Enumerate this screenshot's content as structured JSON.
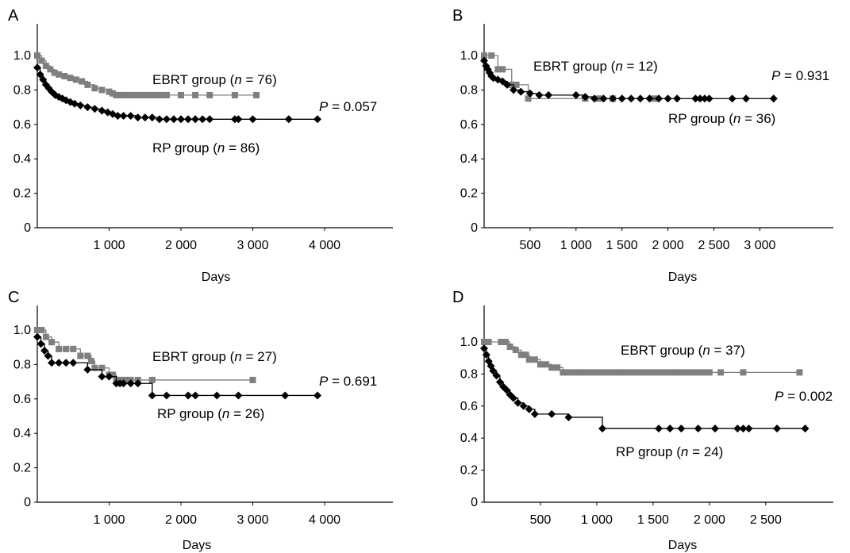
{
  "chart_data": [
    {
      "panel_label": "A",
      "type": "line",
      "xlabel": "Days",
      "ylabel": "",
      "ylim": [
        0,
        1.0
      ],
      "xlim": [
        0,
        4950
      ],
      "x_ticks": [
        1000,
        2000,
        3000,
        4000
      ],
      "x_tick_labels": [
        "1 000",
        "2 000",
        "3 000",
        "4 000"
      ],
      "y_ticks": [
        0,
        0.2,
        0.4,
        0.6,
        0.8,
        1.0
      ],
      "y_tick_labels": [
        "0",
        "0.2",
        "0.4",
        "0.6",
        "0.8",
        "1.0"
      ],
      "grid": false,
      "series": [
        {
          "name": "EBRT group",
          "n_label": "76",
          "color": "#7f7f7f",
          "marker": "square",
          "x": [
            0,
            60,
            120,
            180,
            240,
            300,
            380,
            460,
            540,
            620,
            700,
            800,
            900,
            1000,
            1050,
            1100,
            1150,
            1200,
            1250,
            1300,
            1350,
            1400,
            1450,
            1500,
            1550,
            1600,
            1650,
            1700,
            1750,
            1800,
            2000,
            2200,
            2400,
            2750,
            3050
          ],
          "y": [
            1.0,
            0.97,
            0.94,
            0.92,
            0.9,
            0.89,
            0.88,
            0.87,
            0.86,
            0.85,
            0.83,
            0.81,
            0.8,
            0.79,
            0.78,
            0.77,
            0.77,
            0.77,
            0.77,
            0.77,
            0.77,
            0.77,
            0.77,
            0.77,
            0.77,
            0.77,
            0.77,
            0.77,
            0.77,
            0.77,
            0.77,
            0.77,
            0.77,
            0.77,
            0.77
          ]
        },
        {
          "name": "RP group",
          "n_label": "86",
          "color": "#000000",
          "marker": "diamond",
          "x": [
            0,
            40,
            80,
            120,
            160,
            200,
            250,
            300,
            350,
            400,
            460,
            520,
            600,
            700,
            800,
            900,
            980,
            1050,
            1120,
            1200,
            1300,
            1400,
            1500,
            1600,
            1700,
            1800,
            1900,
            2000,
            2100,
            2200,
            2300,
            2400,
            2750,
            2800,
            3000,
            3500,
            3900
          ],
          "y": [
            0.93,
            0.89,
            0.86,
            0.83,
            0.81,
            0.79,
            0.77,
            0.76,
            0.75,
            0.74,
            0.73,
            0.72,
            0.71,
            0.7,
            0.69,
            0.68,
            0.67,
            0.66,
            0.65,
            0.65,
            0.65,
            0.64,
            0.64,
            0.64,
            0.63,
            0.63,
            0.63,
            0.63,
            0.63,
            0.63,
            0.63,
            0.63,
            0.63,
            0.63,
            0.63,
            0.63,
            0.63
          ]
        }
      ],
      "p_value": "0.057"
    },
    {
      "panel_label": "B",
      "type": "line",
      "xlabel": "Days",
      "ylabel": "",
      "ylim": [
        0,
        1.0
      ],
      "xlim": [
        0,
        3800
      ],
      "x_ticks": [
        500,
        1000,
        1500,
        2000,
        2500,
        3000
      ],
      "x_tick_labels": [
        "500",
        "1 000",
        "1 500",
        "2 000",
        "2 500",
        "3 000"
      ],
      "y_ticks": [
        0,
        0.2,
        0.4,
        0.6,
        0.8,
        1.0
      ],
      "y_tick_labels": [
        "0",
        "0.2",
        "0.4",
        "0.6",
        "0.8",
        "1.0"
      ],
      "grid": false,
      "series": [
        {
          "name": "EBRT group",
          "n_label": "12",
          "color": "#7f7f7f",
          "marker": "square",
          "x": [
            0,
            80,
            150,
            200,
            300,
            350,
            480,
            1100,
            1250,
            1400,
            1850
          ],
          "y": [
            1.0,
            1.0,
            0.92,
            0.92,
            0.83,
            0.83,
            0.75,
            0.75,
            0.75,
            0.75,
            0.75
          ]
        },
        {
          "name": "RP group",
          "n_label": "36",
          "color": "#000000",
          "marker": "diamond",
          "x": [
            0,
            20,
            40,
            60,
            80,
            100,
            150,
            200,
            250,
            320,
            400,
            500,
            600,
            700,
            1000,
            1100,
            1200,
            1300,
            1400,
            1500,
            1600,
            1700,
            1800,
            1900,
            2000,
            2100,
            2300,
            2350,
            2400,
            2450,
            2700,
            2850,
            3150
          ],
          "y": [
            0.97,
            0.94,
            0.92,
            0.9,
            0.88,
            0.87,
            0.86,
            0.85,
            0.83,
            0.8,
            0.79,
            0.78,
            0.77,
            0.77,
            0.77,
            0.76,
            0.75,
            0.75,
            0.75,
            0.75,
            0.75,
            0.75,
            0.75,
            0.75,
            0.75,
            0.75,
            0.75,
            0.75,
            0.75,
            0.75,
            0.75,
            0.75,
            0.75
          ]
        }
      ],
      "p_value": "0.931"
    },
    {
      "panel_label": "C",
      "type": "line",
      "xlabel": "Days",
      "ylabel": "",
      "ylim": [
        0,
        1.0
      ],
      "xlim": [
        0,
        4950
      ],
      "x_ticks": [
        1000,
        2000,
        3000,
        4000
      ],
      "x_tick_labels": [
        "1 000",
        "2 000",
        "3 000",
        "4 000"
      ],
      "y_ticks": [
        0,
        0.2,
        0.4,
        0.6,
        0.8,
        1.0
      ],
      "y_tick_labels": [
        "0",
        "0.2",
        "0.4",
        "0.6",
        "0.8",
        "1.0"
      ],
      "grid": false,
      "series": [
        {
          "name": "EBRT group",
          "n_label": "27",
          "color": "#7f7f7f",
          "marker": "square",
          "x": [
            0,
            60,
            120,
            200,
            300,
            400,
            500,
            600,
            700,
            750,
            800,
            900,
            1000,
            1050,
            1100,
            1150,
            1200,
            1250,
            1300,
            1400,
            1600,
            3000
          ],
          "y": [
            1.0,
            1.0,
            0.96,
            0.93,
            0.89,
            0.89,
            0.89,
            0.85,
            0.85,
            0.82,
            0.78,
            0.78,
            0.74,
            0.74,
            0.71,
            0.71,
            0.71,
            0.71,
            0.71,
            0.71,
            0.71,
            0.71
          ]
        },
        {
          "name": "RP group",
          "n_label": "26",
          "color": "#000000",
          "marker": "diamond",
          "x": [
            0,
            50,
            100,
            150,
            200,
            300,
            400,
            500,
            700,
            900,
            1000,
            1100,
            1150,
            1200,
            1300,
            1400,
            1600,
            1800,
            2100,
            2200,
            2500,
            2800,
            3450,
            3900
          ],
          "y": [
            0.96,
            0.92,
            0.88,
            0.85,
            0.81,
            0.81,
            0.81,
            0.81,
            0.77,
            0.73,
            0.73,
            0.69,
            0.69,
            0.69,
            0.69,
            0.69,
            0.62,
            0.62,
            0.62,
            0.62,
            0.62,
            0.62,
            0.62,
            0.62
          ]
        }
      ],
      "p_value": "0.691"
    },
    {
      "panel_label": "D",
      "type": "line",
      "xlabel": "Days",
      "ylabel": "",
      "ylim": [
        0,
        1.0
      ],
      "xlim": [
        0,
        3100
      ],
      "x_ticks": [
        500,
        1000,
        1500,
        2000,
        2500
      ],
      "x_tick_labels": [
        "500",
        "1 000",
        "1 500",
        "2 000",
        "2 500"
      ],
      "y_ticks": [
        0,
        0.2,
        0.4,
        0.6,
        0.8,
        1.0
      ],
      "y_tick_labels": [
        "0",
        "0.2",
        "0.4",
        "0.6",
        "0.8",
        "1.0"
      ],
      "grid": false,
      "series": [
        {
          "name": "EBRT group",
          "n_label": "37",
          "color": "#7f7f7f",
          "marker": "square",
          "x": [
            0,
            40,
            150,
            190,
            230,
            280,
            330,
            370,
            400,
            450,
            500,
            550,
            600,
            650,
            700,
            750,
            800,
            850,
            900,
            950,
            1000,
            1050,
            1100,
            1150,
            1200,
            1250,
            1300,
            1350,
            1400,
            1450,
            1500,
            1550,
            1600,
            1650,
            1700,
            1750,
            1800,
            1850,
            1900,
            1950,
            2000,
            2100,
            2300,
            2800
          ],
          "y": [
            1.0,
            1.0,
            1.0,
            1.0,
            0.97,
            0.95,
            0.92,
            0.92,
            0.89,
            0.89,
            0.86,
            0.86,
            0.84,
            0.84,
            0.81,
            0.81,
            0.81,
            0.81,
            0.81,
            0.81,
            0.81,
            0.81,
            0.81,
            0.81,
            0.81,
            0.81,
            0.81,
            0.81,
            0.81,
            0.81,
            0.81,
            0.81,
            0.81,
            0.81,
            0.81,
            0.81,
            0.81,
            0.81,
            0.81,
            0.81,
            0.81,
            0.81,
            0.81,
            0.81
          ]
        },
        {
          "name": "RP group",
          "n_label": "24",
          "color": "#000000",
          "marker": "diamond",
          "x": [
            0,
            20,
            40,
            60,
            80,
            110,
            140,
            170,
            200,
            230,
            260,
            300,
            350,
            400,
            450,
            600,
            750,
            1050,
            1550,
            1650,
            1750,
            1900,
            2050,
            2250,
            2300,
            2350,
            2600,
            2850
          ],
          "y": [
            0.96,
            0.92,
            0.88,
            0.85,
            0.82,
            0.79,
            0.75,
            0.72,
            0.7,
            0.67,
            0.65,
            0.62,
            0.6,
            0.58,
            0.55,
            0.55,
            0.53,
            0.46,
            0.46,
            0.46,
            0.46,
            0.46,
            0.46,
            0.46,
            0.46,
            0.46,
            0.46,
            0.46
          ]
        }
      ],
      "p_value": "0.002"
    }
  ],
  "labels": {
    "group_suffix_open": " (",
    "n_symbol": "n",
    "equals": " = ",
    "close": ")",
    "p_symbol": "P",
    "p_equals": " = "
  }
}
